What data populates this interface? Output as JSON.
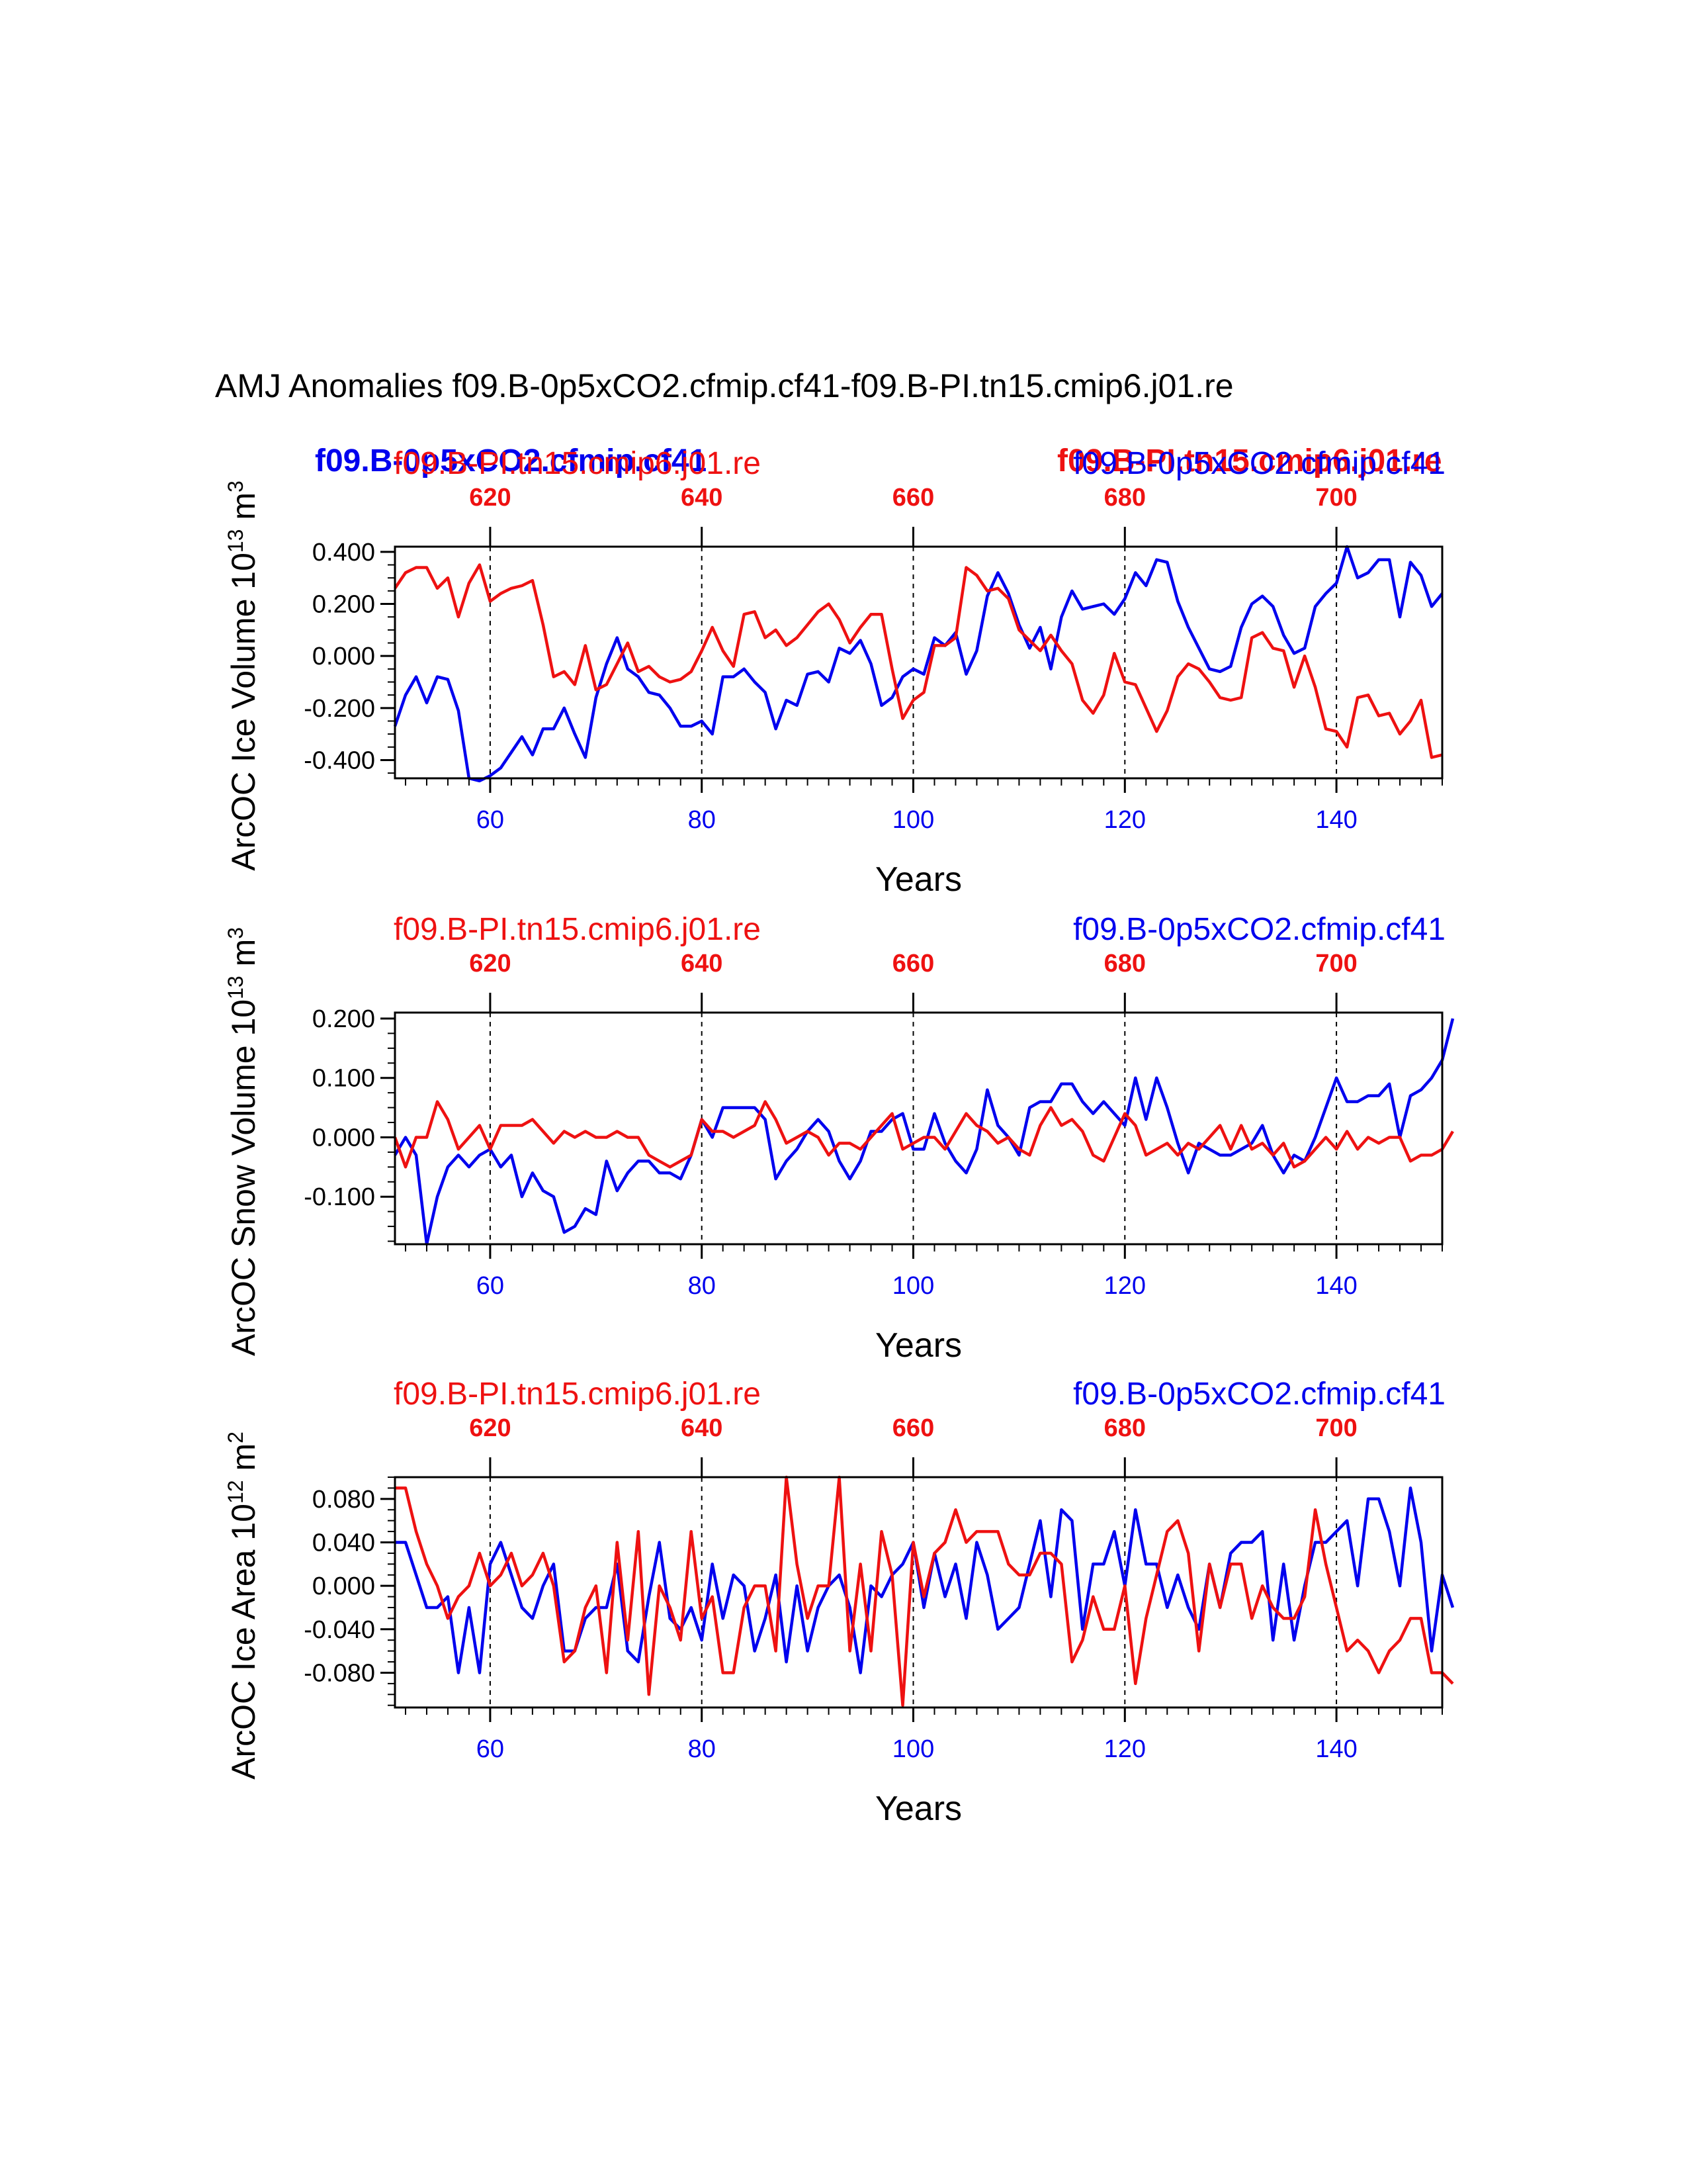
{
  "title": "AMJ Anomalies f09.B-0p5xCO2.cfmip.cf41-f09.B-PI.tn15.cmip6.j01.re",
  "legend": {
    "overlap_blue": "f09.B-0p5xCO2.cfmip.cf41",
    "overlap_red": "f09.B-PI.tn15.cmip6.j01.re"
  },
  "colors": {
    "blue": "#0000ee",
    "red": "#ee1111",
    "axis": "#000000"
  },
  "chart_data": [
    {
      "type": "line",
      "ylabel_main": "ArcOC Ice Volume 10",
      "ylabel_exp": "13",
      "ylabel_unit": " m",
      "ylabel_unit_exp": "3",
      "xlabel": "Years",
      "top_left_label": "f09.B-PI.tn15.cmip6.j01.re",
      "top_right_label": "f09.B-0p5xCO2.cfmip.cf41",
      "xlim": [
        51,
        150
      ],
      "ylim": [
        -0.47,
        0.42
      ],
      "yticks": [
        0.4,
        0.2,
        0.0,
        -0.2,
        -0.4
      ],
      "ytick_labels": [
        "0.400",
        "0.200",
        "0.000",
        "-0.200",
        "-0.400"
      ],
      "xticks_bottom": [
        60,
        80,
        100,
        120,
        140
      ],
      "xtick_labels_bottom": [
        "60",
        "80",
        "100",
        "120",
        "140"
      ],
      "xticks_top": [
        620,
        640,
        660,
        680,
        700
      ],
      "xtick_labels_top": [
        "620",
        "640",
        "660",
        "680",
        "700"
      ],
      "top_offset": 560,
      "series": [
        {
          "name": "f09.B-0p5xCO2.cfmip.cf41",
          "color": "blue",
          "x_start": 51,
          "values": [
            -0.27,
            -0.15,
            -0.08,
            -0.18,
            -0.08,
            -0.09,
            -0.21,
            -0.47,
            -0.48,
            -0.46,
            -0.43,
            -0.37,
            -0.31,
            -0.38,
            -0.28,
            -0.28,
            -0.2,
            -0.3,
            -0.39,
            -0.16,
            -0.03,
            0.07,
            -0.05,
            -0.08,
            -0.14,
            -0.15,
            -0.2,
            -0.27,
            -0.27,
            -0.25,
            -0.3,
            -0.08,
            -0.08,
            -0.05,
            -0.1,
            -0.14,
            -0.28,
            -0.17,
            -0.19,
            -0.07,
            -0.06,
            -0.1,
            0.03,
            0.01,
            0.06,
            -0.03,
            -0.19,
            -0.16,
            -0.08,
            -0.05,
            -0.07,
            0.07,
            0.04,
            0.09,
            -0.07,
            0.02,
            0.23,
            0.32,
            0.24,
            0.12,
            0.03,
            0.11,
            -0.05,
            0.15,
            0.25,
            0.18,
            0.19,
            0.2,
            0.16,
            0.22,
            0.32,
            0.27,
            0.37,
            0.36,
            0.21,
            0.11,
            0.03,
            -0.05,
            -0.06,
            -0.04,
            0.11,
            0.2,
            0.23,
            0.19,
            0.08,
            0.01,
            0.03,
            0.19,
            0.24,
            0.28,
            0.42,
            0.3,
            0.32,
            0.37,
            0.37,
            0.15,
            0.36,
            0.31,
            0.19,
            0.24
          ]
        },
        {
          "name": "f09.B-PI.tn15.cmip6.j01.re",
          "color": "red",
          "x_start": 51,
          "values": [
            0.26,
            0.32,
            0.34,
            0.34,
            0.26,
            0.3,
            0.15,
            0.28,
            0.35,
            0.21,
            0.24,
            0.26,
            0.27,
            0.29,
            0.12,
            -0.08,
            -0.06,
            -0.11,
            0.04,
            -0.13,
            -0.11,
            -0.03,
            0.05,
            -0.06,
            -0.04,
            -0.08,
            -0.1,
            -0.09,
            -0.06,
            0.02,
            0.11,
            0.02,
            -0.04,
            0.16,
            0.17,
            0.07,
            0.1,
            0.04,
            0.07,
            0.12,
            0.17,
            0.2,
            0.14,
            0.05,
            0.11,
            0.16,
            0.16,
            -0.05,
            -0.24,
            -0.17,
            -0.14,
            0.04,
            0.04,
            0.07,
            0.34,
            0.31,
            0.25,
            0.26,
            0.22,
            0.1,
            0.06,
            0.02,
            0.08,
            0.02,
            -0.03,
            -0.17,
            -0.22,
            -0.15,
            0.01,
            -0.1,
            -0.11,
            -0.2,
            -0.29,
            -0.21,
            -0.08,
            -0.03,
            -0.05,
            -0.1,
            -0.16,
            -0.17,
            -0.16,
            0.07,
            0.09,
            0.03,
            0.02,
            -0.12,
            0.0,
            -0.12,
            -0.28,
            -0.29,
            -0.35,
            -0.16,
            -0.15,
            -0.23,
            -0.22,
            -0.3,
            -0.25,
            -0.17,
            -0.39,
            -0.38
          ]
        }
      ]
    },
    {
      "type": "line",
      "ylabel_main": "ArcOC Snow Volume 10",
      "ylabel_exp": "13",
      "ylabel_unit": " m",
      "ylabel_unit_exp": "3",
      "xlabel": "Years",
      "top_left_label": "f09.B-PI.tn15.cmip6.j01.re",
      "top_right_label": "f09.B-0p5xCO2.cfmip.cf41",
      "xlim": [
        51,
        150
      ],
      "ylim": [
        -0.18,
        0.21
      ],
      "yticks": [
        0.2,
        0.1,
        0.0,
        -0.1
      ],
      "ytick_labels": [
        "0.200",
        "0.100",
        "0.000",
        "-0.100"
      ],
      "xticks_bottom": [
        60,
        80,
        100,
        120,
        140
      ],
      "xtick_labels_bottom": [
        "60",
        "80",
        "100",
        "120",
        "140"
      ],
      "xticks_top": [
        620,
        640,
        660,
        680,
        700
      ],
      "xtick_labels_top": [
        "620",
        "640",
        "660",
        "680",
        "700"
      ],
      "top_offset": 560,
      "series": [
        {
          "name": "f09.B-0p5xCO2.cfmip.cf41",
          "color": "blue",
          "x_start": 51,
          "values": [
            -0.03,
            0.0,
            -0.03,
            -0.18,
            -0.1,
            -0.05,
            -0.03,
            -0.05,
            -0.03,
            -0.02,
            -0.05,
            -0.03,
            -0.1,
            -0.06,
            -0.09,
            -0.1,
            -0.16,
            -0.15,
            -0.12,
            -0.13,
            -0.04,
            -0.09,
            -0.06,
            -0.04,
            -0.04,
            -0.06,
            -0.06,
            -0.07,
            -0.03,
            0.03,
            0.0,
            0.05,
            0.05,
            0.05,
            0.05,
            0.03,
            -0.07,
            -0.04,
            -0.02,
            0.01,
            0.03,
            0.01,
            -0.04,
            -0.07,
            -0.04,
            0.01,
            0.01,
            0.03,
            0.04,
            -0.02,
            -0.02,
            0.04,
            -0.01,
            -0.04,
            -0.06,
            -0.02,
            0.08,
            0.02,
            0.0,
            -0.03,
            0.05,
            0.06,
            0.06,
            0.09,
            0.09,
            0.06,
            0.04,
            0.06,
            0.04,
            0.02,
            0.1,
            0.03,
            0.1,
            0.05,
            -0.01,
            -0.06,
            -0.01,
            -0.02,
            -0.03,
            -0.03,
            -0.02,
            -0.01,
            0.02,
            -0.03,
            -0.06,
            -0.03,
            -0.04,
            0.0,
            0.05,
            0.1,
            0.06,
            0.06,
            0.07,
            0.07,
            0.09,
            0.0,
            0.07,
            0.08,
            0.1,
            0.13,
            0.2
          ]
        },
        {
          "name": "f09.B-PI.tn15.cmip6.j01.re",
          "color": "red",
          "x_start": 51,
          "values": [
            0.0,
            -0.05,
            0.0,
            0.0,
            0.06,
            0.03,
            -0.02,
            0.0,
            0.02,
            -0.02,
            0.02,
            0.02,
            0.02,
            0.03,
            0.01,
            -0.01,
            0.01,
            0.0,
            0.01,
            0.0,
            0.0,
            0.01,
            0.0,
            0.0,
            -0.03,
            -0.04,
            -0.05,
            -0.04,
            -0.03,
            0.03,
            0.01,
            0.01,
            0.0,
            0.01,
            0.02,
            0.06,
            0.03,
            -0.01,
            0.0,
            0.01,
            0.0,
            -0.03,
            -0.01,
            -0.01,
            -0.02,
            0.0,
            0.02,
            0.04,
            -0.02,
            -0.01,
            0.0,
            0.0,
            -0.02,
            0.01,
            0.04,
            0.02,
            0.01,
            -0.01,
            0.0,
            -0.02,
            -0.03,
            0.02,
            0.05,
            0.02,
            0.03,
            0.01,
            -0.03,
            -0.04,
            0.0,
            0.04,
            0.02,
            -0.03,
            -0.02,
            -0.01,
            -0.03,
            -0.01,
            -0.02,
            0.0,
            0.02,
            -0.02,
            0.02,
            -0.02,
            -0.01,
            -0.03,
            -0.01,
            -0.05,
            -0.04,
            -0.02,
            0.0,
            -0.02,
            0.01,
            -0.02,
            0.0,
            -0.01,
            0.0,
            0.0,
            -0.04,
            -0.03,
            -0.03,
            -0.02,
            0.01
          ]
        }
      ]
    },
    {
      "type": "line",
      "ylabel_main": "ArcOC Ice Area 10",
      "ylabel_exp": "12",
      "ylabel_unit": " m",
      "ylabel_unit_exp": "2",
      "xlabel": "Years",
      "top_left_label": "f09.B-PI.tn15.cmip6.j01.re",
      "top_right_label": "f09.B-0p5xCO2.cfmip.cf41",
      "xlim": [
        51,
        150
      ],
      "ylim": [
        -0.112,
        0.1
      ],
      "yticks": [
        0.08,
        0.04,
        0.0,
        -0.04,
        -0.08
      ],
      "ytick_labels": [
        "0.080",
        "0.040",
        "0.000",
        "-0.040",
        "-0.080"
      ],
      "xticks_bottom": [
        60,
        80,
        100,
        120,
        140
      ],
      "xtick_labels_bottom": [
        "60",
        "80",
        "100",
        "120",
        "140"
      ],
      "xticks_top": [
        620,
        640,
        660,
        680,
        700
      ],
      "xtick_labels_top": [
        "620",
        "640",
        "660",
        "680",
        "700"
      ],
      "top_offset": 560,
      "series": [
        {
          "name": "f09.B-0p5xCO2.cfmip.cf41",
          "color": "blue",
          "x_start": 51,
          "values": [
            0.04,
            0.04,
            0.01,
            -0.02,
            -0.02,
            -0.01,
            -0.08,
            -0.02,
            -0.08,
            0.02,
            0.04,
            0.01,
            -0.02,
            -0.03,
            0.0,
            0.02,
            -0.06,
            -0.06,
            -0.03,
            -0.02,
            -0.02,
            0.02,
            -0.06,
            -0.07,
            -0.01,
            0.04,
            -0.03,
            -0.04,
            -0.02,
            -0.05,
            0.02,
            -0.03,
            0.01,
            0.0,
            -0.06,
            -0.03,
            0.01,
            -0.07,
            0.0,
            -0.06,
            -0.02,
            0.0,
            0.01,
            -0.02,
            -0.08,
            0.0,
            -0.01,
            0.01,
            0.02,
            0.04,
            -0.02,
            0.03,
            -0.01,
            0.02,
            -0.03,
            0.04,
            0.01,
            -0.04,
            -0.03,
            -0.02,
            0.02,
            0.06,
            -0.01,
            0.07,
            0.06,
            -0.04,
            0.02,
            0.02,
            0.05,
            0.0,
            0.07,
            0.02,
            0.02,
            -0.02,
            0.01,
            -0.02,
            -0.04,
            0.02,
            -0.02,
            0.03,
            0.04,
            0.04,
            0.05,
            -0.05,
            0.02,
            -0.05,
            0.0,
            0.04,
            0.04,
            0.05,
            0.06,
            0.0,
            0.08,
            0.08,
            0.05,
            0.0,
            0.09,
            0.04,
            -0.06,
            0.01,
            -0.02
          ]
        },
        {
          "name": "f09.B-PI.tn15.cmip6.j01.re",
          "color": "red",
          "x_start": 51,
          "values": [
            0.09,
            0.09,
            0.05,
            0.02,
            0.0,
            -0.03,
            -0.01,
            0.0,
            0.03,
            0.0,
            0.01,
            0.03,
            0.0,
            0.01,
            0.03,
            0.0,
            -0.07,
            -0.06,
            -0.02,
            0.0,
            -0.08,
            0.04,
            -0.05,
            0.05,
            -0.1,
            0.0,
            -0.02,
            -0.05,
            0.05,
            -0.03,
            -0.01,
            -0.08,
            -0.08,
            -0.02,
            0.0,
            0.0,
            -0.06,
            0.1,
            0.02,
            -0.03,
            0.0,
            0.0,
            0.1,
            -0.06,
            0.02,
            -0.06,
            0.05,
            0.01,
            -0.11,
            0.04,
            -0.01,
            0.03,
            0.04,
            0.07,
            0.04,
            0.05,
            0.05,
            0.05,
            0.02,
            0.01,
            0.01,
            0.03,
            0.03,
            0.02,
            -0.07,
            -0.05,
            -0.01,
            -0.04,
            -0.04,
            0.0,
            -0.09,
            -0.03,
            0.01,
            0.05,
            0.06,
            0.03,
            -0.06,
            0.02,
            -0.02,
            0.02,
            0.02,
            -0.03,
            0.0,
            -0.02,
            -0.03,
            -0.03,
            -0.01,
            0.07,
            0.02,
            -0.02,
            -0.06,
            -0.05,
            -0.06,
            -0.08,
            -0.06,
            -0.05,
            -0.03,
            -0.03,
            -0.08,
            -0.08,
            -0.09
          ]
        }
      ]
    }
  ]
}
